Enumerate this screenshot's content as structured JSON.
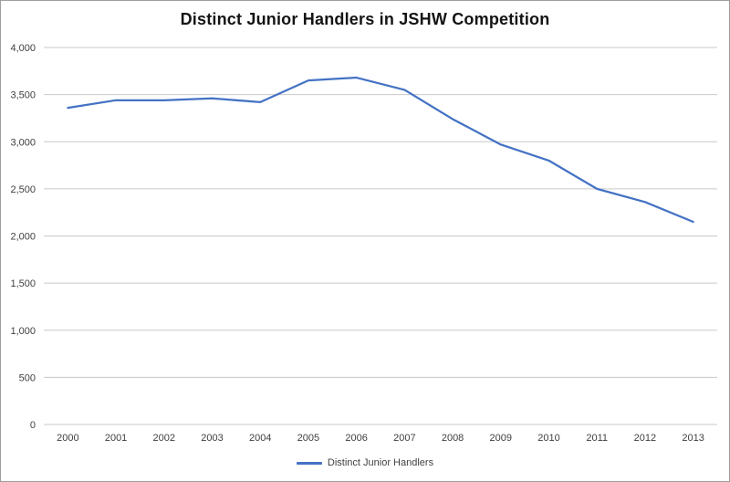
{
  "chart_data": {
    "type": "line",
    "title": "Distinct Junior Handlers in JSHW Competition",
    "x": [
      2000,
      2001,
      2002,
      2003,
      2004,
      2005,
      2006,
      2007,
      2008,
      2009,
      2010,
      2011,
      2012,
      2013
    ],
    "x_labels": [
      "2000",
      "2001",
      "2002",
      "2003",
      "2004",
      "2005",
      "2006",
      "2007",
      "2008",
      "2009",
      "2010",
      "2011",
      "2012",
      "2013"
    ],
    "series": [
      {
        "name": "Distinct Junior Handlers",
        "values": [
          3360,
          3440,
          3440,
          3460,
          3420,
          3650,
          3680,
          3550,
          3240,
          2970,
          2800,
          2500,
          2360,
          2150
        ]
      }
    ],
    "ylim": [
      0,
      4000
    ],
    "ytick_step": 500,
    "ytick_labels": [
      "0",
      "500",
      "1,000",
      "1,500",
      "2,000",
      "2,500",
      "3,000",
      "3,500",
      "4,000"
    ],
    "xlabel": "",
    "ylabel": "",
    "grid": true,
    "legend_position": "bottom",
    "line_color": "#4472C4",
    "grid_color": "#C9C9C9",
    "text_color": "#404040"
  }
}
